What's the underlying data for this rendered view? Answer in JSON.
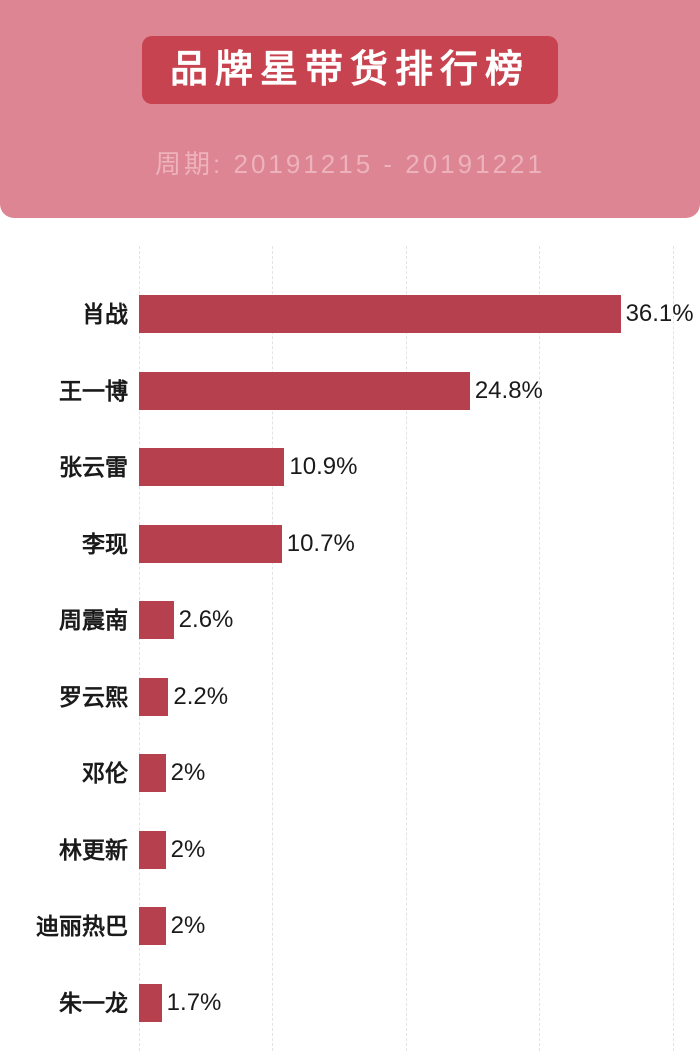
{
  "header": {
    "title": "品牌星带货排行榜",
    "period": "周期: 20191215 - 20191221"
  },
  "colors": {
    "header_bg": "#dd8593",
    "badge_bg": "#c7434f",
    "period_text": "#edb2bc",
    "bar": "#b6404d",
    "grid": "#e3e3e3",
    "label": "#1a1a1a"
  },
  "chart_data": {
    "type": "bar",
    "orientation": "horizontal",
    "title": "品牌星带货排行榜",
    "subtitle": "周期: 20191215 - 20191221",
    "categories": [
      "肖战",
      "王一博",
      "张云雷",
      "李现",
      "周震南",
      "罗云熙",
      "邓伦",
      "林更新",
      "迪丽热巴",
      "朱一龙"
    ],
    "values": [
      36.1,
      24.8,
      10.9,
      10.7,
      2.6,
      2.2,
      2,
      2,
      2,
      1.7
    ],
    "value_labels": [
      "36.1%",
      "24.8%",
      "10.9%",
      "10.7%",
      "2.6%",
      "2.2%",
      "2%",
      "2%",
      "2%",
      "1.7%"
    ],
    "xlabel": "",
    "ylabel": "",
    "xlim": [
      0,
      40
    ],
    "gridlines_pct": [
      0,
      10,
      20,
      30,
      40
    ],
    "grid": "vertical-dashed",
    "legend_position": "none",
    "value_label_position": "end-of-bar"
  }
}
